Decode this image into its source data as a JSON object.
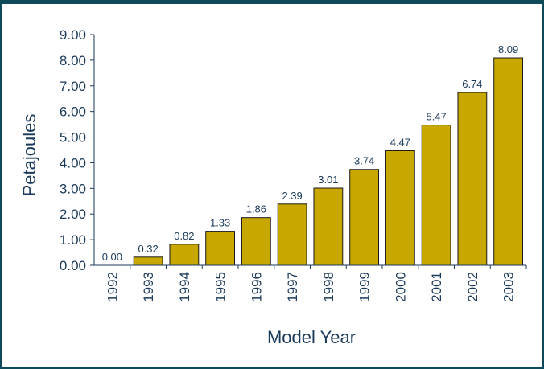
{
  "chart_data": {
    "type": "bar",
    "categories": [
      "1992",
      "1993",
      "1994",
      "1995",
      "1996",
      "1997",
      "1998",
      "1999",
      "2000",
      "2001",
      "2002",
      "2003"
    ],
    "values": [
      0.0,
      0.32,
      0.82,
      1.33,
      1.86,
      2.39,
      3.01,
      3.74,
      4.47,
      5.47,
      6.74,
      8.09
    ],
    "data_labels": [
      "0.00",
      "0.32",
      "0.82",
      "1.33",
      "1.86",
      "2.39",
      "3.01",
      "3.74",
      "4.47",
      "5.47",
      "6.74",
      "8.09"
    ],
    "y_ticks": [
      "0.00",
      "1.00",
      "2.00",
      "3.00",
      "4.00",
      "5.00",
      "6.00",
      "7.00",
      "8.00",
      "9.00"
    ],
    "title": "",
    "xlabel": "Model Year",
    "ylabel": "Petajoules",
    "ylim": [
      0,
      9
    ],
    "grid": false,
    "bar_color": "#c8a800",
    "text_color": "#1a3a5c",
    "frame_color": "#0e4a5a"
  }
}
